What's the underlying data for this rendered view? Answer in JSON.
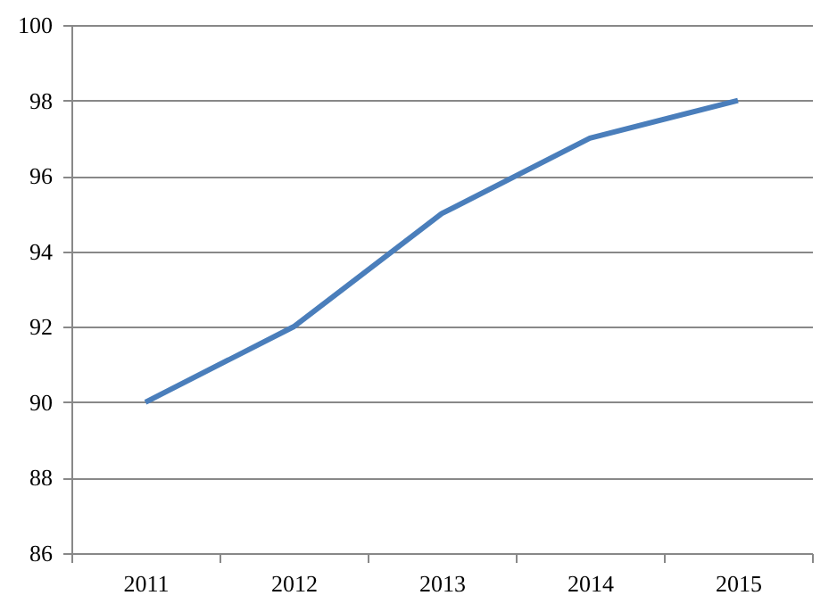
{
  "chart_data": {
    "type": "line",
    "categories": [
      "2011",
      "2012",
      "2013",
      "2014",
      "2015"
    ],
    "series": [
      {
        "color": "#4a7ebb",
        "values": [
          90,
          92,
          95,
          97,
          98
        ]
      }
    ],
    "ylim": [
      86,
      100
    ],
    "yticks": [
      86,
      88,
      90,
      92,
      94,
      96,
      98,
      100
    ],
    "grid": "y"
  }
}
